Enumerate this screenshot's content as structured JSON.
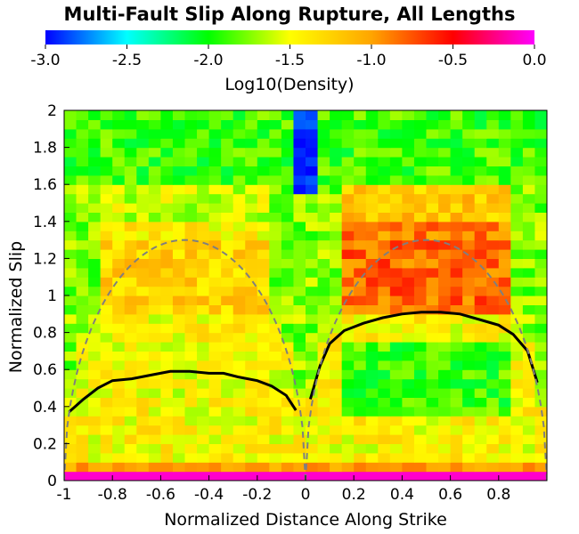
{
  "chart_data": {
    "type": "heatmap",
    "title": "Multi-Fault Slip Along Rupture, All Lengths",
    "xlabel": "Normalized Distance Along Strike",
    "ylabel": "Normalized Slip",
    "xlim": [
      -1,
      1
    ],
    "ylim": [
      0,
      2
    ],
    "x_ticks": [
      "-1",
      "-0.8",
      "-0.6",
      "-0.4",
      "-0.2",
      "0",
      "0.2",
      "0.4",
      "0.6",
      "0.8"
    ],
    "y_ticks": [
      "0",
      "0.2",
      "0.4",
      "0.6",
      "0.8",
      "1",
      "1.2",
      "1.4",
      "1.6",
      "1.8",
      "2"
    ],
    "colorbar": {
      "label": "Log10(Density)",
      "range": [
        -3.0,
        0.0
      ],
      "ticks": [
        "-3.0",
        "-2.5",
        "-2.0",
        "-1.5",
        "-1.0",
        "-0.5",
        "0.0"
      ],
      "colors": [
        "#0000ff",
        "#00ffff",
        "#00ff00",
        "#ffff00",
        "#ffa500",
        "#ff0000",
        "#ff00ff"
      ]
    },
    "heatmap_regions": {
      "bottom_row_value": -0.1,
      "high_slip_band": {
        "y_range": [
          0.9,
          1.4
        ],
        "left_value": -1.25,
        "right_value": -0.8
      },
      "high_slip_zone": {
        "y_range": [
          1.6,
          2.0
        ],
        "value": -1.9
      },
      "near_zero_low_zone": {
        "x_range": [
          -0.06,
          0.03
        ],
        "y_range": [
          1.55,
          2.0
        ],
        "value": -2.9
      }
    },
    "series": [
      {
        "style": "solid-black",
        "x": [
          -0.98,
          -0.92,
          -0.86,
          -0.8,
          -0.72,
          -0.64,
          -0.56,
          -0.48,
          -0.4,
          -0.34,
          -0.28,
          -0.2,
          -0.14,
          -0.08,
          -0.04
        ],
        "y": [
          0.37,
          0.44,
          0.5,
          0.54,
          0.55,
          0.57,
          0.59,
          0.59,
          0.58,
          0.58,
          0.56,
          0.54,
          0.51,
          0.46,
          0.38
        ]
      },
      {
        "style": "solid-black",
        "x": [
          0.02,
          0.06,
          0.1,
          0.16,
          0.24,
          0.32,
          0.4,
          0.48,
          0.56,
          0.64,
          0.72,
          0.8,
          0.86,
          0.92,
          0.96
        ],
        "y": [
          0.44,
          0.62,
          0.74,
          0.81,
          0.85,
          0.88,
          0.9,
          0.91,
          0.91,
          0.9,
          0.87,
          0.84,
          0.79,
          0.7,
          0.53
        ]
      },
      {
        "style": "dashed-gray",
        "ellipse": {
          "center": -0.5,
          "half_width": 0.5,
          "peak": 1.3
        }
      },
      {
        "style": "dashed-gray",
        "ellipse": {
          "center": 0.5,
          "half_width": 0.5,
          "peak": 1.3
        }
      }
    ],
    "grid": false,
    "legend": "none"
  }
}
